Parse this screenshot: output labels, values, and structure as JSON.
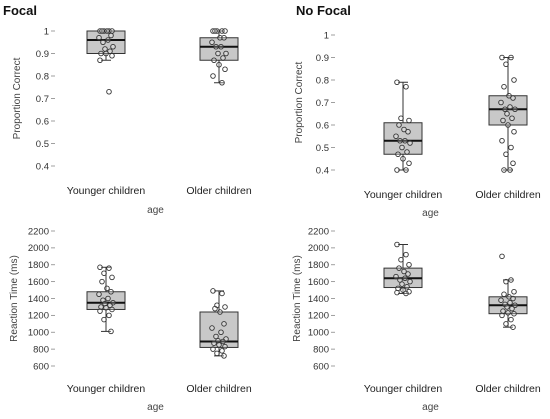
{
  "chart_data": [
    {
      "type": "box",
      "title": "Focal",
      "xlabel": "age",
      "ylabel": "Proportion Correct",
      "ylim": [
        0.4,
        1.0
      ],
      "yticks": [
        0.4,
        0.5,
        0.6,
        0.7,
        0.8,
        0.9,
        1
      ],
      "yticklabels": [
        "0.4",
        "0.5",
        "0.6",
        "0.7",
        "0.8",
        "0.9",
        "1"
      ],
      "categories": [
        "Younger children",
        "Older children"
      ],
      "boxes": [
        {
          "whislo": 0.87,
          "q1": 0.9,
          "med": 0.96,
          "q3": 1.0,
          "whishi": 1.0,
          "points": [
            1.0,
            1.0,
            1.0,
            1.0,
            1.0,
            1.0,
            0.98,
            0.97,
            0.96,
            0.95,
            0.93,
            0.92,
            0.91,
            0.9,
            0.9,
            0.89,
            0.87,
            0.73
          ]
        },
        {
          "whislo": 0.77,
          "q1": 0.87,
          "med": 0.93,
          "q3": 0.97,
          "whishi": 1.0,
          "points": [
            1.0,
            1.0,
            1.0,
            1.0,
            1.0,
            0.97,
            0.97,
            0.95,
            0.93,
            0.93,
            0.9,
            0.9,
            0.88,
            0.87,
            0.85,
            0.83,
            0.8,
            0.77
          ]
        }
      ]
    },
    {
      "type": "box",
      "title": "No Focal",
      "xlabel": "age",
      "ylabel": "Proportion Correct",
      "ylim": [
        0.4,
        1.0
      ],
      "yticks": [
        0.4,
        0.5,
        0.6,
        0.7,
        0.8,
        0.9,
        1
      ],
      "yticklabels": [
        "0.4",
        "0.5",
        "0.6",
        "0.7",
        "0.8",
        "0.9",
        "1"
      ],
      "categories": [
        "Younger children",
        "Older children"
      ],
      "boxes": [
        {
          "whislo": 0.4,
          "q1": 0.47,
          "med": 0.53,
          "q3": 0.61,
          "whishi": 0.79,
          "points": [
            0.79,
            0.77,
            0.63,
            0.62,
            0.6,
            0.58,
            0.57,
            0.55,
            0.53,
            0.53,
            0.52,
            0.5,
            0.48,
            0.47,
            0.45,
            0.43,
            0.4,
            0.4
          ]
        },
        {
          "whislo": 0.4,
          "q1": 0.6,
          "med": 0.67,
          "q3": 0.73,
          "whishi": 0.9,
          "points": [
            0.9,
            0.9,
            0.87,
            0.8,
            0.77,
            0.73,
            0.72,
            0.7,
            0.68,
            0.67,
            0.67,
            0.65,
            0.63,
            0.62,
            0.6,
            0.57,
            0.53,
            0.5,
            0.47,
            0.43,
            0.4,
            0.4
          ]
        }
      ]
    },
    {
      "type": "box",
      "title": "",
      "xlabel": "age",
      "ylabel": "Reaction Time (ms)",
      "ylim": [
        600,
        2200
      ],
      "yticks": [
        600,
        800,
        1000,
        1200,
        1400,
        1600,
        1800,
        2000,
        2200
      ],
      "yticklabels": [
        "600",
        "800",
        "1000",
        "1200",
        "1400",
        "1600",
        "1800",
        "2000",
        "2200"
      ],
      "categories": [
        "Younger children",
        "Older children"
      ],
      "boxes": [
        {
          "whislo": 1010,
          "q1": 1270,
          "med": 1350,
          "q3": 1480,
          "whishi": 1770,
          "points": [
            1770,
            1760,
            1700,
            1650,
            1600,
            1520,
            1480,
            1450,
            1400,
            1380,
            1350,
            1340,
            1320,
            1300,
            1290,
            1270,
            1250,
            1200,
            1150,
            1010
          ]
        },
        {
          "whislo": 720,
          "q1": 820,
          "med": 890,
          "q3": 1240,
          "whishi": 1490,
          "points": [
            1490,
            1460,
            1320,
            1300,
            1280,
            1240,
            1100,
            1050,
            1000,
            950,
            920,
            900,
            890,
            870,
            850,
            830,
            800,
            780,
            750,
            720
          ]
        }
      ]
    },
    {
      "type": "box",
      "title": "",
      "xlabel": "age",
      "ylabel": "Reaction Time (ms)",
      "ylim": [
        600,
        2200
      ],
      "yticks": [
        600,
        800,
        1000,
        1200,
        1400,
        1600,
        1800,
        2000,
        2200
      ],
      "yticklabels": [
        "600",
        "800",
        "1000",
        "1200",
        "1400",
        "1600",
        "1800",
        "2000",
        "2200"
      ],
      "categories": [
        "Younger children",
        "Older children"
      ],
      "boxes": [
        {
          "whislo": 1460,
          "q1": 1530,
          "med": 1640,
          "q3": 1760,
          "whishi": 2040,
          "points": [
            2040,
            1920,
            1860,
            1800,
            1760,
            1720,
            1690,
            1660,
            1640,
            1620,
            1600,
            1570,
            1540,
            1520,
            1500,
            1480,
            1470,
            1460
          ]
        },
        {
          "whislo": 1060,
          "q1": 1220,
          "med": 1320,
          "q3": 1420,
          "whishi": 1620,
          "points": [
            1900,
            1620,
            1600,
            1480,
            1450,
            1420,
            1400,
            1380,
            1350,
            1330,
            1320,
            1300,
            1280,
            1250,
            1230,
            1220,
            1200,
            1150,
            1100,
            1060
          ]
        }
      ]
    }
  ]
}
